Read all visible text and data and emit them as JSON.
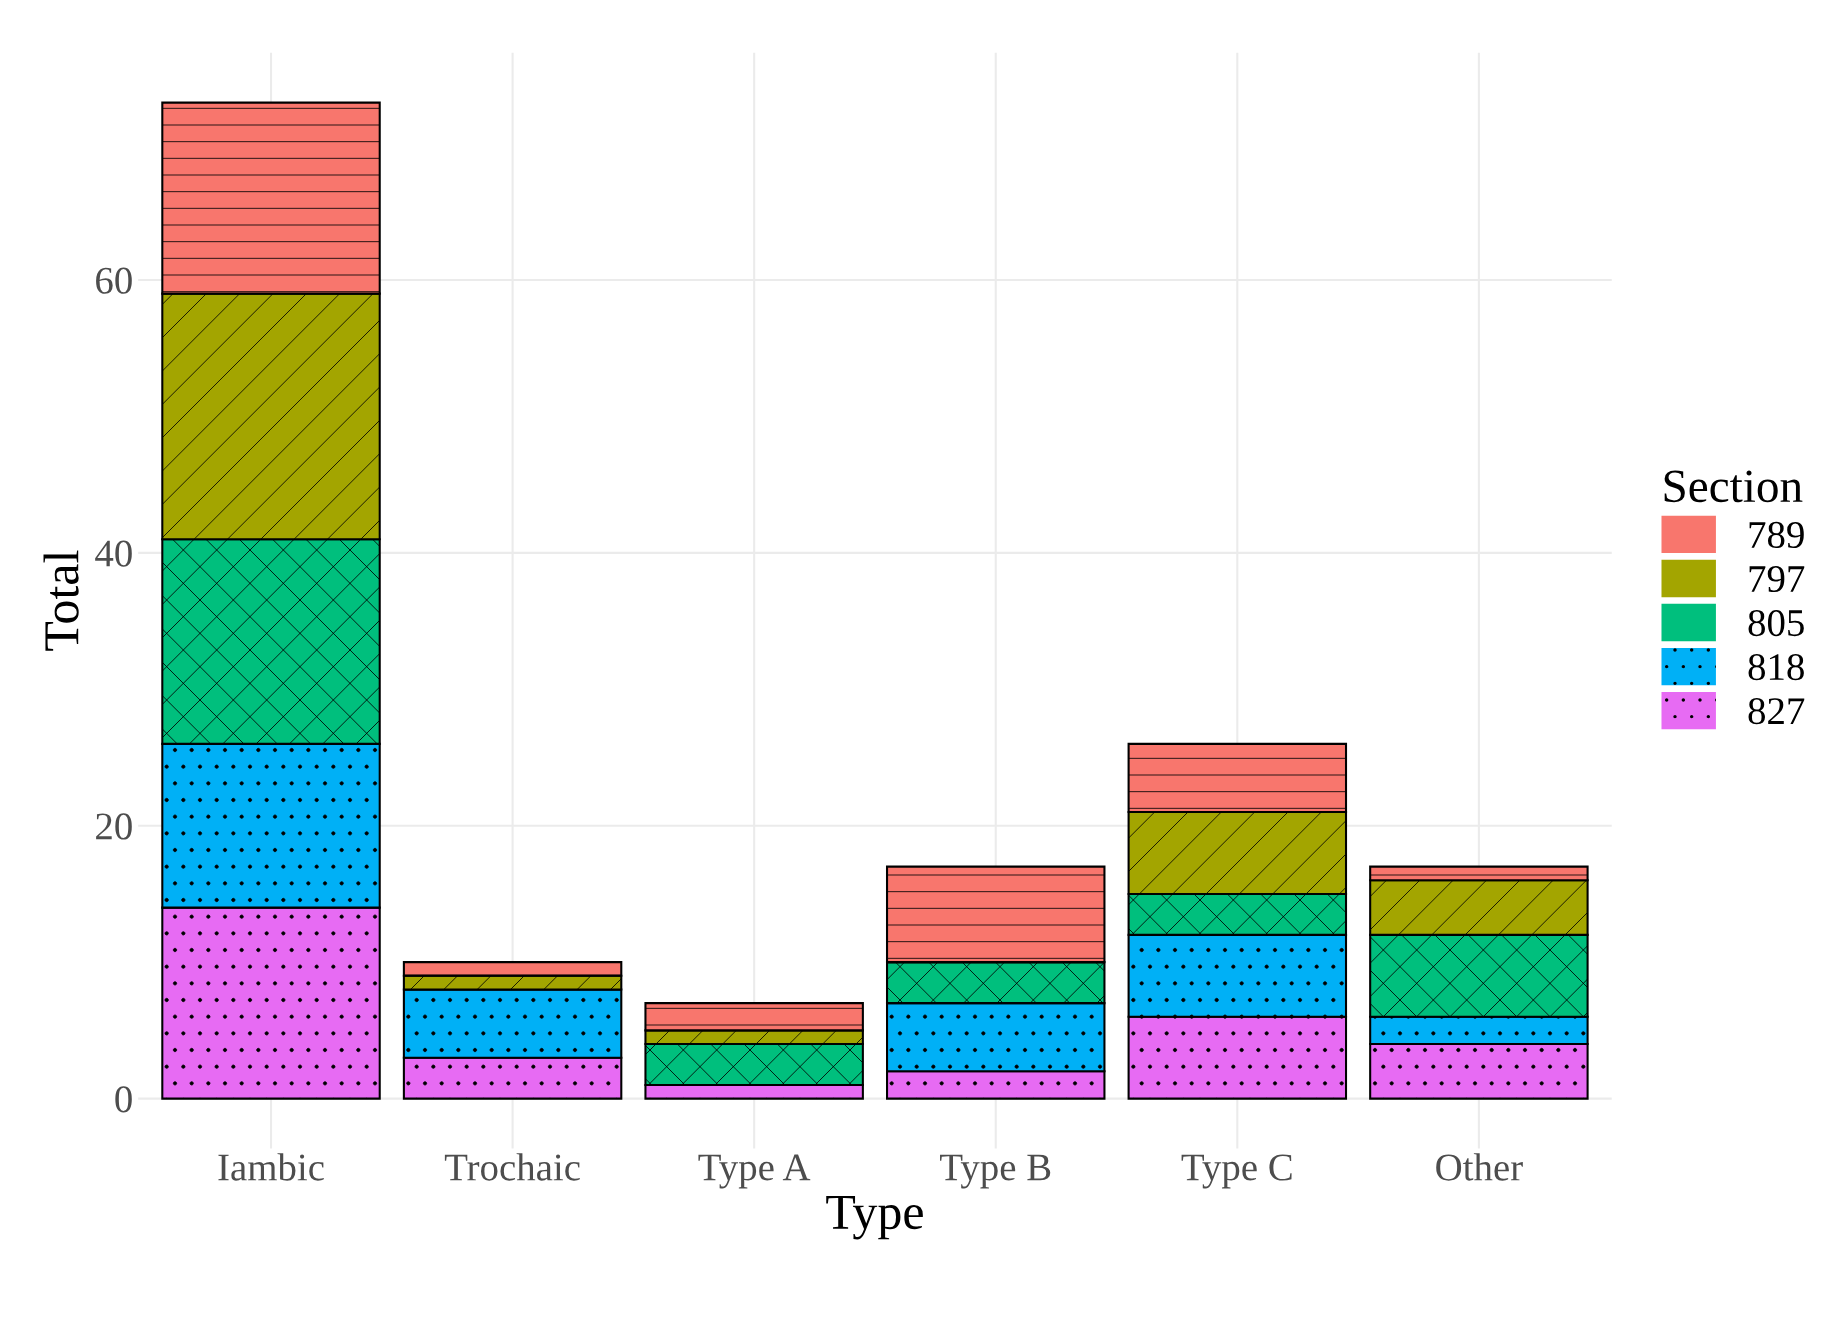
{
  "chart_data": {
    "type": "bar",
    "stacked": true,
    "xlabel": "Type",
    "ylabel": "Total",
    "legend_title": "Section",
    "legend": "right",
    "categories": [
      "Iambic",
      "Trochaic",
      "Type A",
      "Type B",
      "Type C",
      "Other"
    ],
    "series": [
      {
        "name": "827",
        "color": "#e76bf3",
        "values": [
          14,
          3,
          1,
          2,
          6,
          4
        ]
      },
      {
        "name": "818",
        "color": "#00b0f6",
        "values": [
          12,
          5,
          0,
          5,
          6,
          2
        ]
      },
      {
        "name": "805",
        "color": "#00bf7d",
        "values": [
          15,
          0,
          3,
          3,
          3,
          6
        ]
      },
      {
        "name": "797",
        "color": "#a3a500",
        "values": [
          18,
          1,
          1,
          0,
          6,
          4
        ]
      },
      {
        "name": "789",
        "color": "#f8766d",
        "values": [
          14,
          1,
          2,
          7,
          5,
          1
        ]
      }
    ],
    "ylim": [
      -3.65,
      76.65
    ],
    "yticks": [
      0,
      20,
      40,
      60
    ],
    "grid": true
  }
}
